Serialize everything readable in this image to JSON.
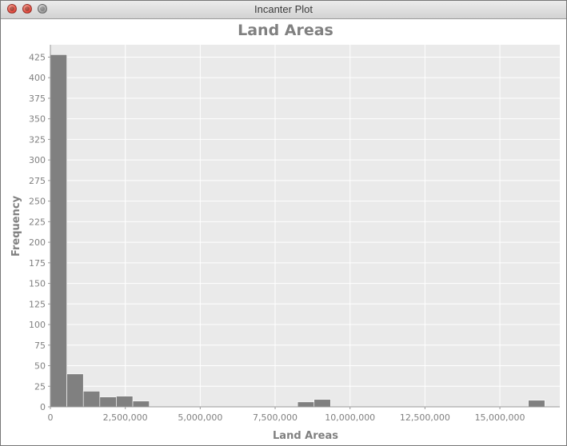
{
  "window": {
    "title": "Incanter Plot"
  },
  "colors": {
    "plot_bg": "#eaeaea",
    "bar": "#808080",
    "grid": "#ffffff",
    "text": "#808080"
  },
  "chart_data": {
    "type": "bar",
    "title": "Land Areas",
    "xlabel": "Land Areas",
    "ylabel": "Frequency",
    "grid": true,
    "xlim": [
      0,
      17000000
    ],
    "ylim": [
      0,
      440
    ],
    "x_ticks": [
      0,
      2500000,
      5000000,
      7500000,
      10000000,
      12500000,
      15000000
    ],
    "x_tick_labels": [
      "0",
      "2,500,000",
      "5,000,000",
      "7,500,000",
      "10,000,000",
      "12,500,000",
      "15,000,000"
    ],
    "y_ticks": [
      0,
      25,
      50,
      75,
      100,
      125,
      150,
      175,
      200,
      225,
      250,
      275,
      300,
      325,
      350,
      375,
      400,
      425
    ],
    "y_tick_labels": [
      "0",
      "25",
      "50",
      "75",
      "100",
      "125",
      "150",
      "175",
      "200",
      "225",
      "250",
      "275",
      "300",
      "325",
      "350",
      "375",
      "400",
      "425"
    ],
    "bins": [
      {
        "start": 0,
        "end": 550000,
        "count": 428
      },
      {
        "start": 550000,
        "end": 1100000,
        "count": 40
      },
      {
        "start": 1100000,
        "end": 1650000,
        "count": 19
      },
      {
        "start": 1650000,
        "end": 2200000,
        "count": 12
      },
      {
        "start": 2200000,
        "end": 2750000,
        "count": 13
      },
      {
        "start": 2750000,
        "end": 3300000,
        "count": 7
      },
      {
        "start": 8250000,
        "end": 8800000,
        "count": 6
      },
      {
        "start": 8800000,
        "end": 9350000,
        "count": 9
      },
      {
        "start": 15950000,
        "end": 16500000,
        "count": 8
      }
    ]
  }
}
